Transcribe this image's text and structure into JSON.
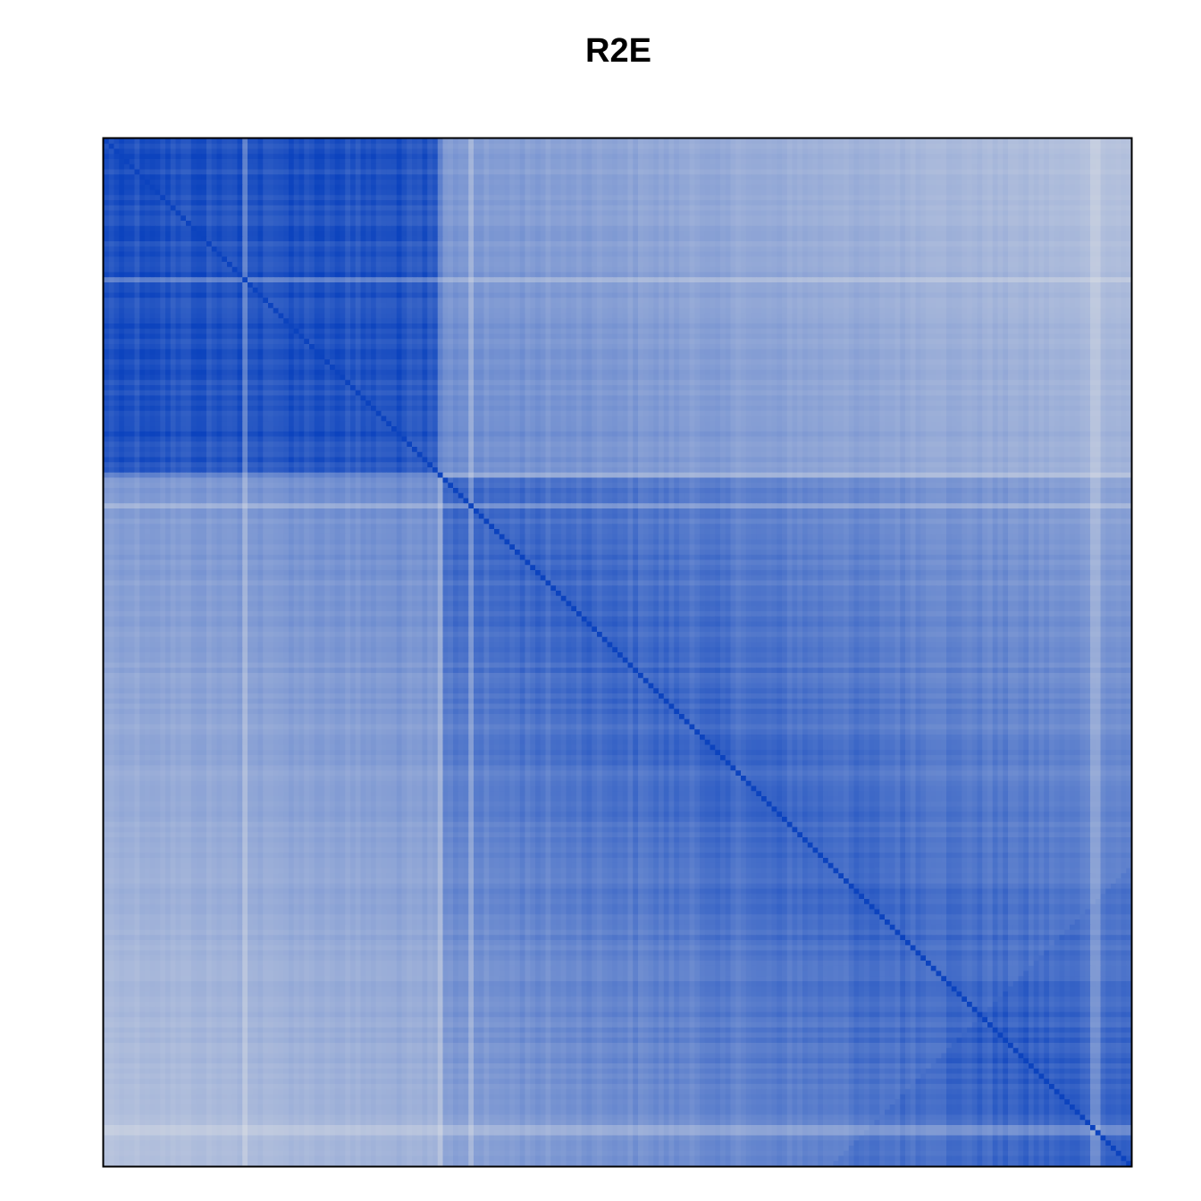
{
  "chart_data": {
    "type": "heatmap",
    "title": "R2E",
    "xlabel": "",
    "ylabel": "",
    "n_rows": 200,
    "n_cols": 200,
    "grid": false,
    "legend": "none",
    "axes_ticks": false,
    "value_range": [
      0,
      1
    ],
    "color_scale": {
      "low": "#e8e8e6",
      "high": "#0c43be"
    },
    "blocks": [
      {
        "name": "",
        "start": 0,
        "end": 66,
        "within": 0.9
      },
      {
        "name": "",
        "start": 66,
        "end": 200,
        "within": 0.78
      }
    ],
    "between_blocks": 0.45,
    "diagonal": 1.0,
    "outlier_indices": [
      27,
      65,
      71,
      192,
      193
    ]
  }
}
